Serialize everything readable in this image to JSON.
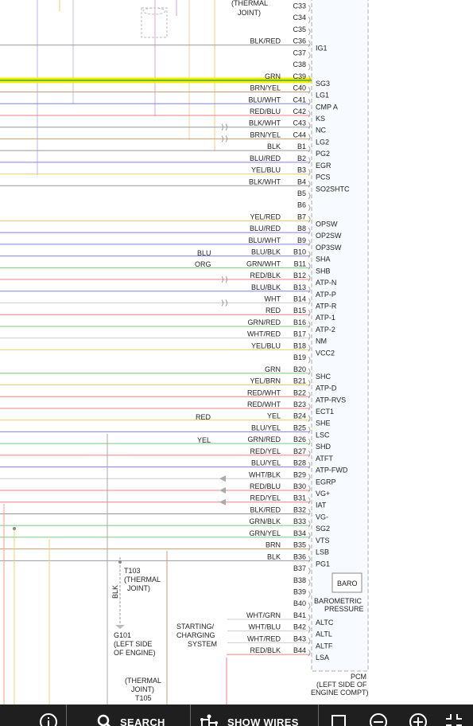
{
  "pins": [
    {
      "wire": "",
      "pin": "C33",
      "signal": ""
    },
    {
      "wire": "",
      "pin": "C34",
      "signal": ""
    },
    {
      "wire": "",
      "pin": "C35",
      "signal": ""
    },
    {
      "wire": "BLK/RED",
      "pin": "C36",
      "signal": "IG1"
    },
    {
      "wire": "",
      "pin": "C37",
      "signal": ""
    },
    {
      "wire": "",
      "pin": "C38",
      "signal": ""
    },
    {
      "wire": "GRN",
      "pin": "C39",
      "signal": "SG3"
    },
    {
      "wire": "BRN/YEL",
      "pin": "C40",
      "signal": "LG1"
    },
    {
      "wire": "BLU/WHT",
      "pin": "C41",
      "signal": "CMP A"
    },
    {
      "wire": "RED/BLU",
      "pin": "C42",
      "signal": "KS"
    },
    {
      "wire": "BLK/WHT",
      "pin": "C43",
      "signal": "NC"
    },
    {
      "wire": "BRN/YEL",
      "pin": "C44",
      "signal": "LG2"
    },
    {
      "wire": "BLK",
      "pin": "B1",
      "signal": "PG2"
    },
    {
      "wire": "BLU/RED",
      "pin": "B2",
      "signal": "EGR"
    },
    {
      "wire": "YEL/BLU",
      "pin": "B3",
      "signal": "PCS"
    },
    {
      "wire": "BLK/WHT",
      "pin": "B4",
      "signal": "SO2SHTC"
    },
    {
      "wire": "",
      "pin": "B5",
      "signal": ""
    },
    {
      "wire": "",
      "pin": "B6",
      "signal": ""
    },
    {
      "wire": "YEL/RED",
      "pin": "B7",
      "signal": "OPSW"
    },
    {
      "wire": "BLU/RED",
      "pin": "B8",
      "signal": "OP2SW"
    },
    {
      "wire": "BLU/WHT",
      "pin": "B9",
      "signal": "OP3SW"
    },
    {
      "wire": "BLU/BLK",
      "pin": "B10",
      "signal": "SHA"
    },
    {
      "wire": "GRN/WHT",
      "pin": "B11",
      "signal": "SHB"
    },
    {
      "wire": "RED/BLK",
      "pin": "B12",
      "signal": "ATP-N"
    },
    {
      "wire": "BLU/BLK",
      "pin": "B13",
      "signal": "ATP-P"
    },
    {
      "wire": "WHT",
      "pin": "B14",
      "signal": "ATP-R"
    },
    {
      "wire": "RED",
      "pin": "B15",
      "signal": "ATP-1"
    },
    {
      "wire": "GRN/RED",
      "pin": "B16",
      "signal": "ATP-2"
    },
    {
      "wire": "WHT/RED",
      "pin": "B17",
      "signal": "NM"
    },
    {
      "wire": "YEL/BLU",
      "pin": "B18",
      "signal": "VCC2"
    },
    {
      "wire": "",
      "pin": "B19",
      "signal": ""
    },
    {
      "wire": "GRN",
      "pin": "B20",
      "signal": "SHC"
    },
    {
      "wire": "YEL/BRN",
      "pin": "B21",
      "signal": "ATP-D"
    },
    {
      "wire": "RED/WHT",
      "pin": "B22",
      "signal": "ATP-RVS"
    },
    {
      "wire": "RED/WHT",
      "pin": "B23",
      "signal": "ECT1"
    },
    {
      "wire": "YEL",
      "pin": "B24",
      "signal": "SHE"
    },
    {
      "wire": "BLU/YEL",
      "pin": "B25",
      "signal": "LSC"
    },
    {
      "wire": "GRN/RED",
      "pin": "B26",
      "signal": "SHD"
    },
    {
      "wire": "RED/YEL",
      "pin": "B27",
      "signal": "ATFT"
    },
    {
      "wire": "BLU/YEL",
      "pin": "B28",
      "signal": "ATP-FWD"
    },
    {
      "wire": "WHT/BLK",
      "pin": "B29",
      "signal": "EGRP"
    },
    {
      "wire": "RED/BLU",
      "pin": "B30",
      "signal": "VG+"
    },
    {
      "wire": "RED/YEL",
      "pin": "B31",
      "signal": "IAT"
    },
    {
      "wire": "BLK/RED",
      "pin": "B32",
      "signal": "VG-"
    },
    {
      "wire": "GRN/BLK",
      "pin": "B33",
      "signal": "SG2"
    },
    {
      "wire": "GRN/YEL",
      "pin": "B34",
      "signal": "VTS"
    },
    {
      "wire": "BRN",
      "pin": "B35",
      "signal": "LSB"
    },
    {
      "wire": "BLK",
      "pin": "B36",
      "signal": "PG1"
    },
    {
      "wire": "",
      "pin": "B37",
      "signal": ""
    },
    {
      "wire": "",
      "pin": "B38",
      "signal": ""
    },
    {
      "wire": "",
      "pin": "B39",
      "signal": ""
    },
    {
      "wire": "",
      "pin": "B40",
      "signal": ""
    },
    {
      "wire": "WHT/GRN",
      "pin": "B41",
      "signal": "ALTC"
    },
    {
      "wire": "WHT/BLU",
      "pin": "B42",
      "signal": "ALTL"
    },
    {
      "wire": "WHT/RED",
      "pin": "B43",
      "signal": "ALTF"
    },
    {
      "wire": "RED/BLK",
      "pin": "B44",
      "signal": "LSA"
    }
  ],
  "thermal_joint_top": {
    "line1": "(THERMAL",
    "line2": "JOINT)"
  },
  "splice_labels": {
    "blu": "BLU",
    "org": "ORG",
    "red": "RED",
    "yel": "YEL"
  },
  "t103": {
    "line1": "T103",
    "line2": "(THERMAL",
    "line3": "JOINT)"
  },
  "blk_vertical": "BLK",
  "g101": {
    "line1": "G101",
    "line2": "(LEFT SIDE",
    "line3": "OF ENGINE)"
  },
  "starting_charging": {
    "line1": "STARTING/",
    "line2": "CHARGING",
    "line3": "SYSTEM"
  },
  "t105": {
    "line1": "(THERMAL",
    "line2": "JOINT)",
    "line3": "T105"
  },
  "baro": {
    "box": "BARO",
    "line1": "BAROMETRIC",
    "line2": "PRESSURE"
  },
  "pcm": {
    "line1": "PCM",
    "line2": "(LEFT SIDE OF",
    "line3": "ENGINE COMPT)"
  },
  "toolbar": {
    "search": "SEARCH",
    "show_wires": "SHOW WIRES"
  },
  "colors": {
    "highlight": "#f0f000",
    "toolbar_bg": "#1f1f1f",
    "pcm_border": "#a8a8a8"
  },
  "icons": [
    "info-icon",
    "search-icon",
    "wires-icon",
    "square-icon",
    "zoom-out-icon",
    "zoom-in-icon",
    "fit-icon"
  ]
}
